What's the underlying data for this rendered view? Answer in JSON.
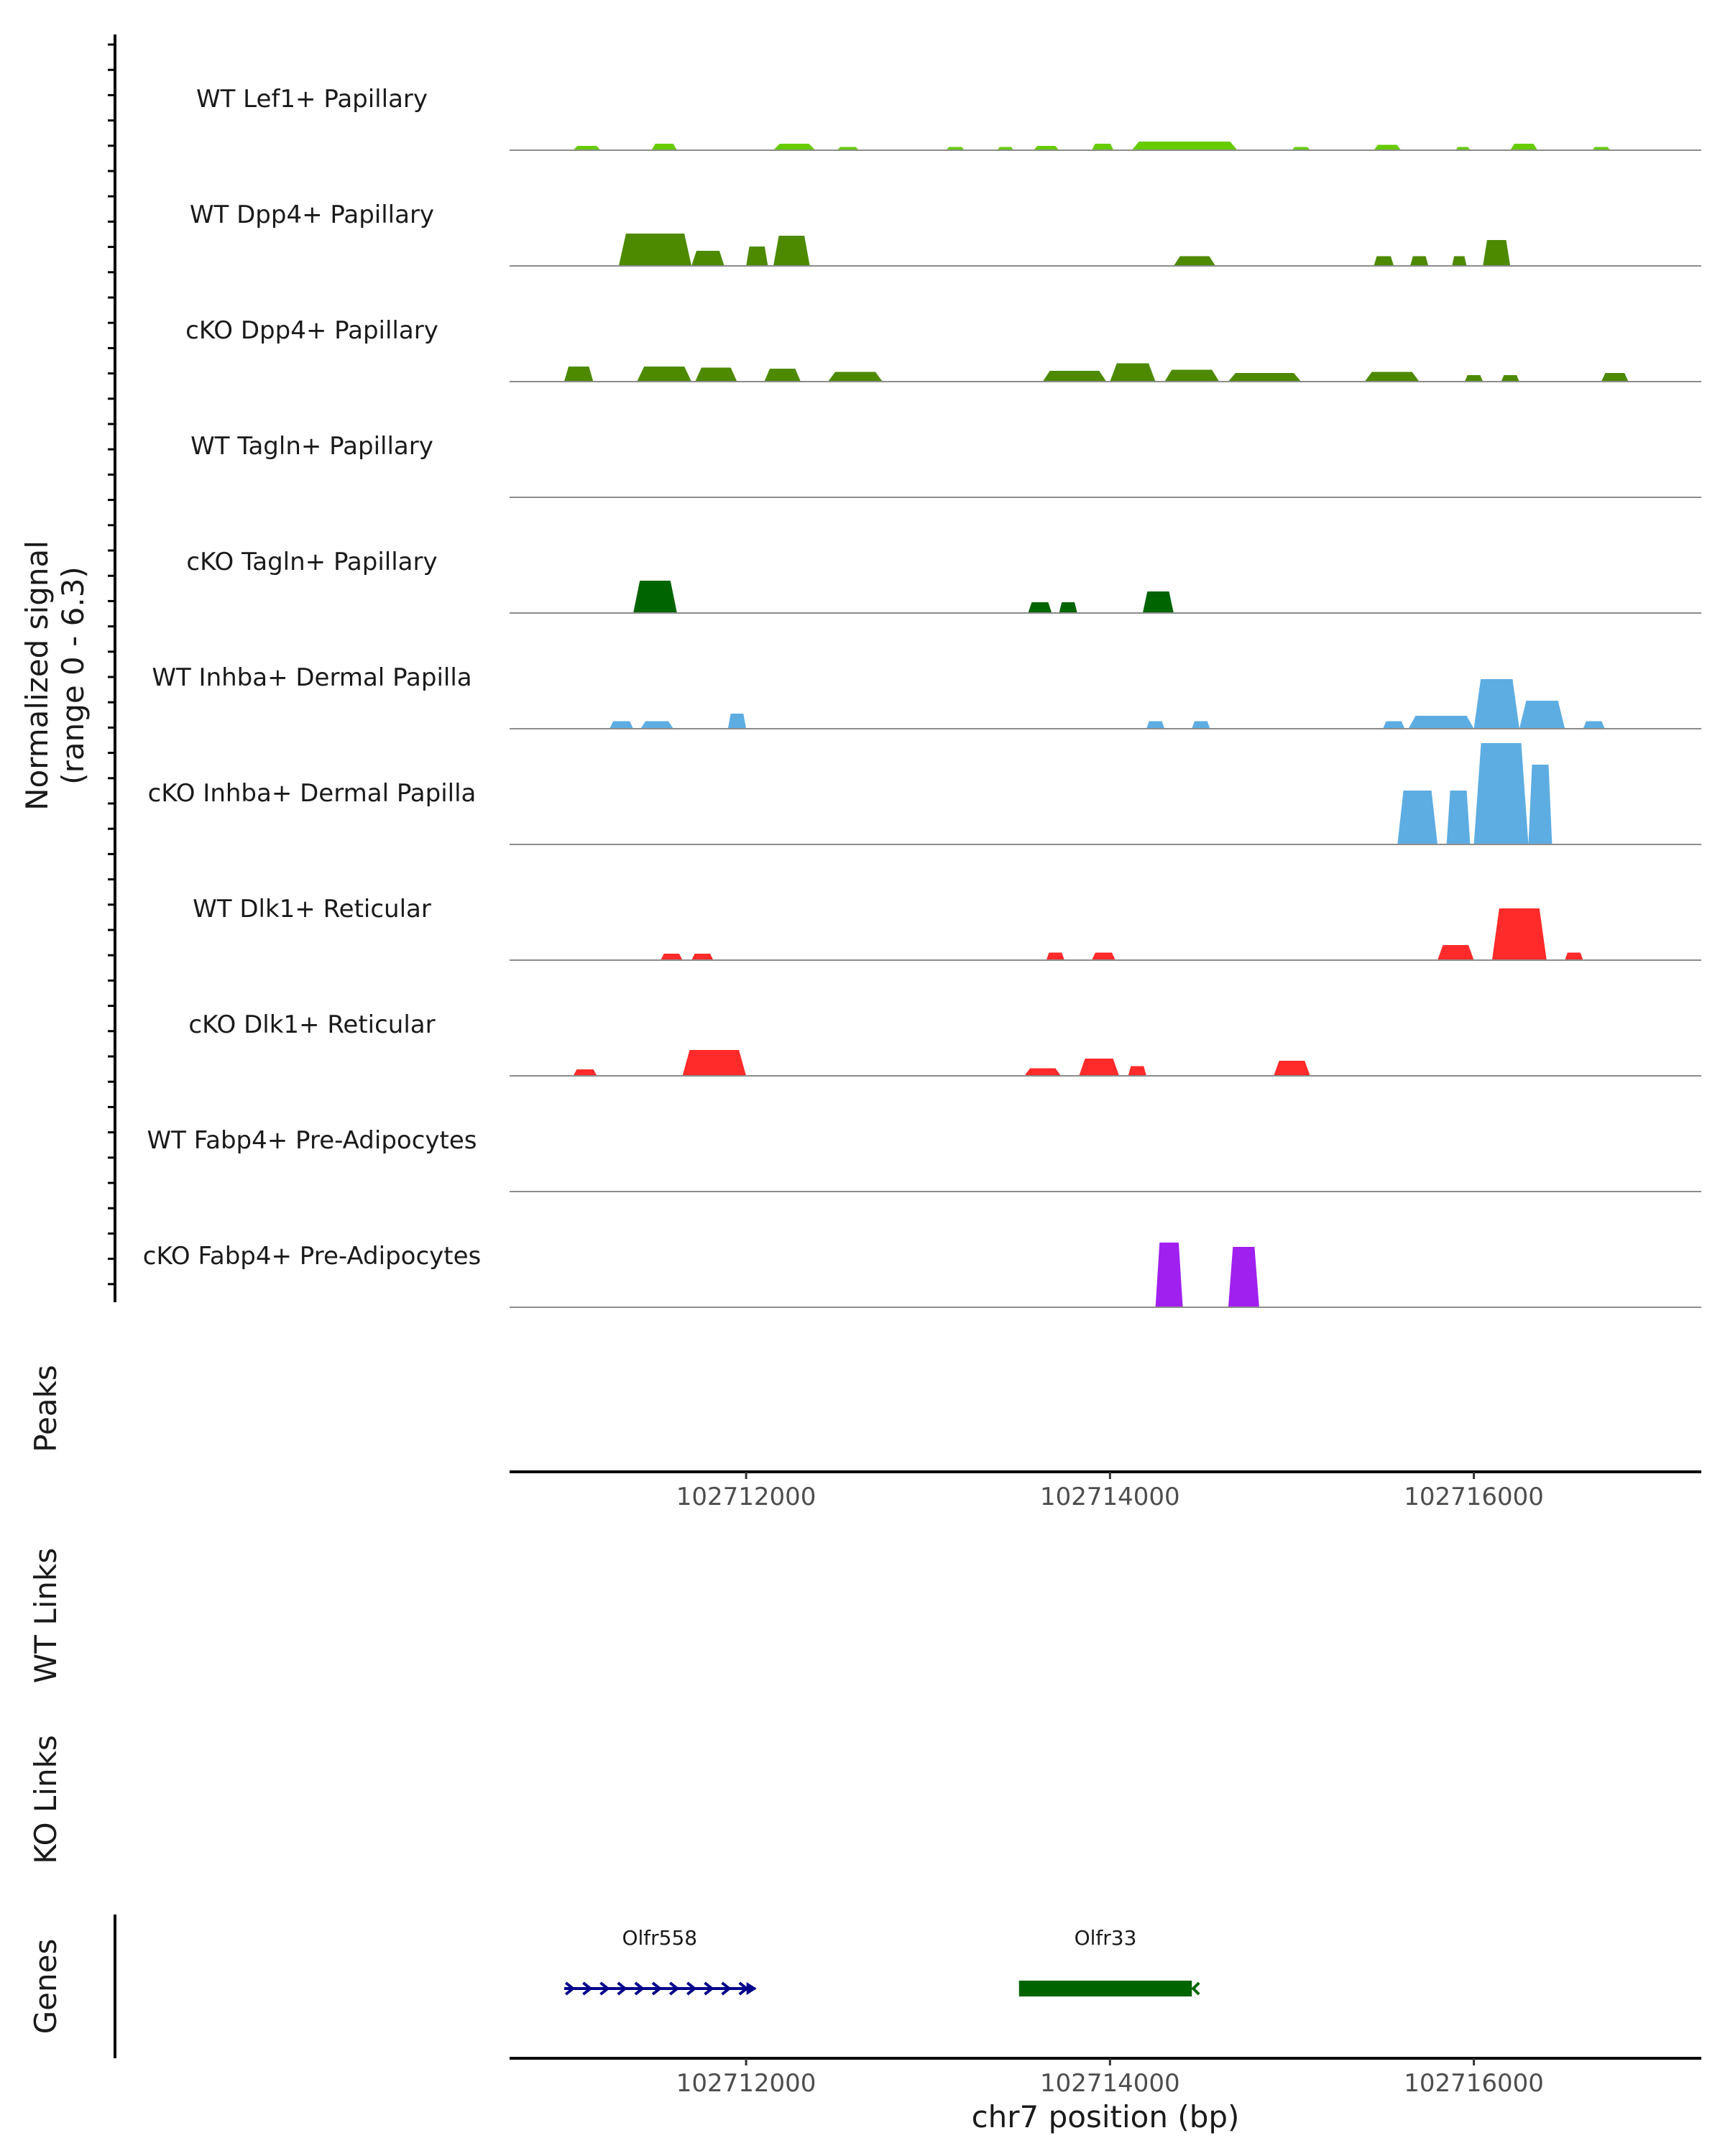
{
  "chart_data": {
    "type": "coverage",
    "chromosome": "chr7",
    "xlim": [
      102710700,
      102717250
    ],
    "signal_ylabel_line1": "Normalized signal",
    "signal_ylabel_line2": "(range 0 - 6.3)",
    "y_range": [
      0,
      6.3
    ],
    "xlabel": "chr7 position (bp)",
    "x_ticks": [
      102712000,
      102714000,
      102716000
    ],
    "x_tick_labels": [
      "102712000",
      "102714000",
      "102716000"
    ],
    "panel_labels": {
      "peaks": "Peaks",
      "wt_links": "WT Links",
      "ko_links": "KO Links",
      "genes": "Genes"
    },
    "tracks": [
      {
        "name": "WT Lef1+ Papillary",
        "color": "#66cc00",
        "peaks": [
          [
            102711050,
            102711200,
            0.2
          ],
          [
            102711480,
            102711620,
            0.3
          ],
          [
            102712150,
            102712380,
            0.3
          ],
          [
            102712500,
            102712620,
            0.15
          ],
          [
            102713100,
            102713200,
            0.15
          ],
          [
            102713380,
            102713470,
            0.15
          ],
          [
            102713580,
            102713720,
            0.2
          ],
          [
            102713900,
            102714020,
            0.3
          ],
          [
            102714120,
            102714700,
            0.4
          ],
          [
            102715000,
            102715100,
            0.15
          ],
          [
            102715450,
            102715600,
            0.25
          ],
          [
            102715900,
            102715980,
            0.15
          ],
          [
            102716200,
            102716350,
            0.3
          ],
          [
            102716650,
            102716750,
            0.15
          ]
        ]
      },
      {
        "name": "WT Dpp4+ Papillary",
        "color": "#4d8a00",
        "peaks": [
          [
            102711300,
            102711700,
            1.5
          ],
          [
            102711700,
            102711880,
            0.7
          ],
          [
            102712000,
            102712120,
            0.9
          ],
          [
            102712150,
            102712350,
            1.4
          ],
          [
            102714350,
            102714580,
            0.45
          ],
          [
            102715450,
            102715560,
            0.45
          ],
          [
            102715650,
            102715750,
            0.45
          ],
          [
            102715880,
            102715960,
            0.45
          ],
          [
            102716050,
            102716200,
            1.2
          ]
        ]
      },
      {
        "name": "cKO Dpp4+ Papillary",
        "color": "#4d8a00",
        "peaks": [
          [
            102711000,
            102711160,
            0.7
          ],
          [
            102711400,
            102711700,
            0.7
          ],
          [
            102711720,
            102711950,
            0.65
          ],
          [
            102712100,
            102712300,
            0.6
          ],
          [
            102712450,
            102712750,
            0.45
          ],
          [
            102713630,
            102713980,
            0.5
          ],
          [
            102714000,
            102714250,
            0.85
          ],
          [
            102714300,
            102714600,
            0.55
          ],
          [
            102714650,
            102715050,
            0.4
          ],
          [
            102715400,
            102715700,
            0.45
          ],
          [
            102715950,
            102716050,
            0.3
          ],
          [
            102716150,
            102716250,
            0.3
          ],
          [
            102716700,
            102716850,
            0.4
          ]
        ]
      },
      {
        "name": "WT Tagln+ Papillary",
        "color": "#006400",
        "peaks": []
      },
      {
        "name": "cKO Tagln+ Papillary",
        "color": "#006400",
        "peaks": [
          [
            102711380,
            102711620,
            1.5
          ],
          [
            102713550,
            102713680,
            0.5
          ],
          [
            102713720,
            102713820,
            0.5
          ],
          [
            102714180,
            102714350,
            1.0
          ]
        ]
      },
      {
        "name": "WT Inhba+ Dermal Papilla",
        "color": "#5dade2",
        "peaks": [
          [
            102711250,
            102711380,
            0.35
          ],
          [
            102711420,
            102711600,
            0.35
          ],
          [
            102711900,
            102712000,
            0.7
          ],
          [
            102714200,
            102714300,
            0.35
          ],
          [
            102714450,
            102714550,
            0.35
          ],
          [
            102715500,
            102715620,
            0.35
          ],
          [
            102715640,
            102716000,
            0.6
          ],
          [
            102716000,
            102716250,
            2.3
          ],
          [
            102716250,
            102716500,
            1.3
          ],
          [
            102716600,
            102716720,
            0.35
          ]
        ]
      },
      {
        "name": "cKO Inhba+ Dermal Papilla",
        "color": "#5dade2",
        "peaks": [
          [
            102715580,
            102715800,
            2.5
          ],
          [
            102715850,
            102715980,
            2.5
          ],
          [
            102716000,
            102716300,
            4.7
          ],
          [
            102716300,
            102716430,
            3.7
          ]
        ]
      },
      {
        "name": "WT Dlk1+ Reticular",
        "color": "#ff2a2a",
        "peaks": [
          [
            102711530,
            102711650,
            0.3
          ],
          [
            102711700,
            102711820,
            0.3
          ],
          [
            102713650,
            102713750,
            0.35
          ],
          [
            102713900,
            102714030,
            0.35
          ],
          [
            102715800,
            102716000,
            0.7
          ],
          [
            102716100,
            102716400,
            2.4
          ],
          [
            102716500,
            102716600,
            0.35
          ]
        ]
      },
      {
        "name": "cKO Dlk1+ Reticular",
        "color": "#ff2a2a",
        "peaks": [
          [
            102711050,
            102711180,
            0.3
          ],
          [
            102711650,
            102712000,
            1.2
          ],
          [
            102713530,
            102713730,
            0.35
          ],
          [
            102713830,
            102714050,
            0.8
          ],
          [
            102714100,
            102714200,
            0.45
          ],
          [
            102714900,
            102715100,
            0.7
          ]
        ]
      },
      {
        "name": "WT Fabp4+ Pre-Adipocytes",
        "color": "#a020f0",
        "peaks": []
      },
      {
        "name": "cKO Fabp4+ Pre-Adipocytes",
        "color": "#a020f0",
        "peaks": [
          [
            102714250,
            102714400,
            3.0
          ],
          [
            102714650,
            102714820,
            2.8
          ]
        ]
      }
    ],
    "genes": [
      {
        "name": "Olfr558",
        "start": 102711000,
        "end": 102712050,
        "strand": "+",
        "color": "#00008b"
      },
      {
        "name": "Olfr33",
        "start": 102713500,
        "end": 102714450,
        "strand": "-",
        "color": "#006400"
      }
    ]
  }
}
